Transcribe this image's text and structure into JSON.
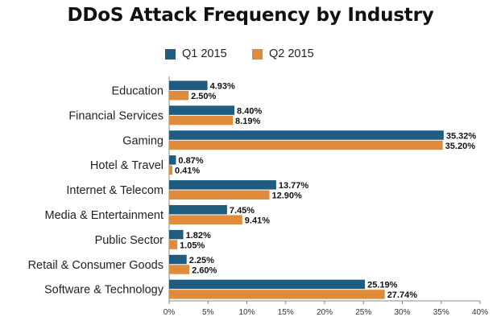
{
  "colors": {
    "q1": "#1F5C80",
    "q2": "#E08A3C",
    "axis": "#888888"
  },
  "chart_data": {
    "type": "bar",
    "orientation": "horizontal",
    "title": "DDoS Attack Frequency by Industry",
    "xlabel": "",
    "ylabel": "",
    "xlim": [
      0,
      40
    ],
    "grid": false,
    "legend_position": "top",
    "categories": [
      "Education",
      "Financial Services",
      "Gaming",
      "Hotel & Travel",
      "Internet & Telecom",
      "Media & Entertainment",
      "Public Sector",
      "Retail & Consumer Goods",
      "Software & Technology"
    ],
    "series": [
      {
        "name": "Q1 2015",
        "values": [
          4.93,
          8.4,
          35.32,
          0.87,
          13.77,
          7.45,
          1.82,
          2.25,
          25.19
        ],
        "labels": [
          "4.93%",
          "8.40%",
          "35.32%",
          "0.87%",
          "13.77%",
          "7.45%",
          "1.82%",
          "2.25%",
          "25.19%"
        ]
      },
      {
        "name": "Q2 2015",
        "values": [
          2.5,
          8.19,
          35.2,
          0.41,
          12.9,
          9.41,
          1.05,
          2.6,
          27.74
        ],
        "labels": [
          "2.50%",
          "8.19%",
          "35.20%",
          "0.41%",
          "12.90%",
          "9.41%",
          "1.05%",
          "2.60%",
          "27.74%"
        ]
      }
    ],
    "x_ticks": [
      "0%",
      "5%",
      "10%",
      "15%",
      "20%",
      "25%",
      "30%",
      "35%",
      "40%"
    ],
    "x_tick_values": [
      0,
      5,
      10,
      15,
      20,
      25,
      30,
      35,
      40
    ]
  }
}
